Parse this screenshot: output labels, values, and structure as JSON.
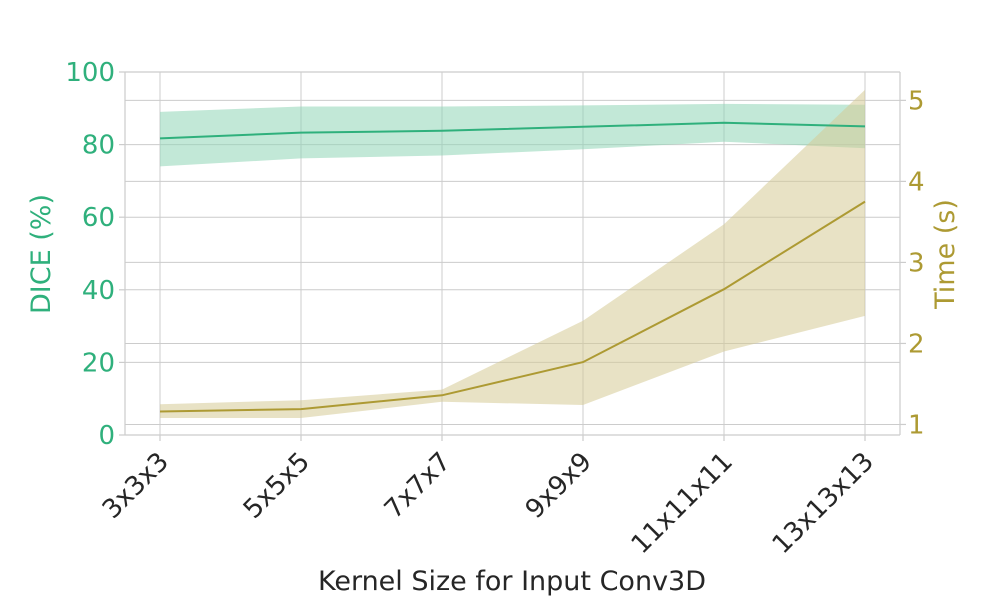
{
  "chart_data": {
    "type": "line",
    "xlabel": "Kernel Size for Input Conv3D",
    "categories": [
      "3x3x3",
      "5x5x5",
      "7x7x7",
      "9x9x9",
      "11x11x11",
      "13x13x13"
    ],
    "y_left": {
      "label": "DICE (%)",
      "ylim": [
        0,
        100
      ],
      "ticks": [
        "0",
        "20",
        "40",
        "60",
        "80",
        "100"
      ],
      "color": "#2fb07c"
    },
    "y_right": {
      "label": "Time (s)",
      "ylim": [
        0.87,
        5.35
      ],
      "ticks": [
        "1",
        "2",
        "3",
        "4",
        "5"
      ],
      "color": "#ad9a33"
    },
    "series": [
      {
        "axis": "left",
        "values": [
          81.7,
          83.3,
          83.8,
          84.9,
          86.0,
          85.0
        ],
        "lower": [
          74.0,
          76.2,
          77.0,
          78.7,
          80.8,
          79.0
        ],
        "upper": [
          89.0,
          90.5,
          90.5,
          90.8,
          91.2,
          91.0
        ],
        "line_color": "#2fb07c",
        "band_color": "#8fd6b7"
      },
      {
        "axis": "right",
        "values": [
          1.16,
          1.19,
          1.36,
          1.77,
          2.67,
          3.75
        ],
        "lower": [
          1.08,
          1.08,
          1.28,
          1.24,
          1.9,
          2.34
        ],
        "upper": [
          1.25,
          1.3,
          1.43,
          2.28,
          3.47,
          5.13
        ],
        "line_color": "#ad9a33",
        "band_color": "#d6cb96"
      }
    ],
    "grid": true
  }
}
